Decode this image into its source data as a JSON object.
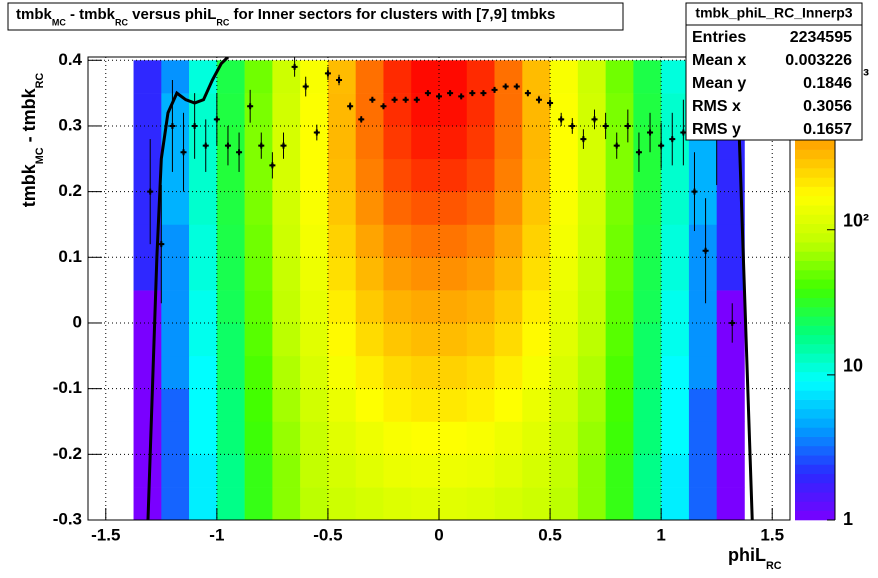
{
  "chart_data": {
    "type": "heatmap",
    "title_parts": [
      "tmbk",
      "MC",
      " - tmbk",
      "RC",
      " versus phiL",
      "RC",
      " for Inner sectors for clusters with [7,9] tmbks"
    ],
    "xlabel_parts": [
      "phiL",
      "RC"
    ],
    "ylabel_parts": [
      "tmbk",
      "MC",
      " - tmbk",
      "RC"
    ],
    "xlim": [
      -1.58,
      1.58
    ],
    "ylim": [
      -0.3,
      0.405
    ],
    "xticks": [
      -1.5,
      -1,
      -0.5,
      0,
      0.5,
      1,
      1.5
    ],
    "yticks": [
      -0.3,
      -0.2,
      -0.1,
      0,
      0.1,
      0.2,
      0.3,
      0.4
    ],
    "grid": true,
    "log_z": true,
    "zlim": [
      1,
      1550
    ],
    "zticks": [
      1,
      10,
      {
        "value": 100,
        "label": "10²"
      },
      {
        "value": 1000,
        "label": "10³"
      }
    ],
    "palette": [
      "#7a00ff",
      "#2a2aff",
      "#00a0ff",
      "#00ffff",
      "#00ff80",
      "#40ff00",
      "#c0ff00",
      "#ffff00",
      "#ffb000",
      "#ff6000",
      "#ff0000"
    ],
    "xbins": [
      -1.5,
      -1.375,
      -1.25,
      -1.125,
      -1,
      -0.875,
      -0.75,
      -0.625,
      -0.5,
      -0.375,
      -0.25,
      -0.125,
      0,
      0.125,
      0.25,
      0.375,
      0.5,
      0.625,
      0.75,
      0.875,
      1,
      1.125,
      1.25,
      1.375,
      1.5
    ],
    "ybins": [
      -0.3,
      -0.25,
      -0.2,
      -0.15,
      -0.1,
      -0.05,
      0,
      0.05,
      0.1,
      0.15,
      0.2,
      0.25,
      0.3,
      0.35,
      0.4
    ],
    "z": [
      [
        0,
        1,
        3,
        8,
        18,
        35,
        60,
        80,
        95,
        105,
        115,
        120,
        120,
        115,
        105,
        95,
        80,
        60,
        35,
        18,
        8,
        3,
        1,
        0
      ],
      [
        0,
        1,
        3,
        8,
        18,
        35,
        60,
        85,
        105,
        120,
        135,
        140,
        140,
        135,
        120,
        105,
        85,
        60,
        35,
        18,
        8,
        3,
        1,
        0
      ],
      [
        0,
        1,
        3,
        9,
        20,
        38,
        65,
        90,
        120,
        140,
        160,
        170,
        170,
        160,
        140,
        120,
        90,
        65,
        38,
        20,
        9,
        3,
        1,
        0
      ],
      [
        0,
        1,
        3,
        9,
        20,
        40,
        70,
        100,
        135,
        170,
        195,
        210,
        210,
        195,
        170,
        135,
        100,
        70,
        40,
        20,
        9,
        3,
        1,
        0
      ],
      [
        0,
        1,
        4,
        9,
        22,
        42,
        75,
        110,
        155,
        200,
        240,
        260,
        260,
        240,
        200,
        155,
        110,
        75,
        42,
        22,
        9,
        4,
        1,
        0
      ],
      [
        0,
        1,
        4,
        10,
        22,
        45,
        80,
        120,
        180,
        240,
        290,
        320,
        320,
        290,
        240,
        180,
        120,
        80,
        45,
        22,
        10,
        4,
        1,
        0
      ],
      [
        0,
        1,
        4,
        10,
        24,
        47,
        85,
        130,
        200,
        280,
        350,
        380,
        380,
        350,
        280,
        200,
        130,
        85,
        47,
        24,
        10,
        4,
        1,
        0
      ],
      [
        0,
        2,
        4,
        11,
        25,
        50,
        90,
        140,
        230,
        330,
        430,
        480,
        480,
        430,
        330,
        230,
        140,
        90,
        50,
        25,
        11,
        4,
        2,
        0
      ],
      [
        0,
        2,
        4,
        11,
        26,
        52,
        95,
        150,
        260,
        400,
        540,
        620,
        620,
        540,
        400,
        260,
        150,
        95,
        52,
        26,
        11,
        4,
        2,
        0
      ],
      [
        0,
        2,
        5,
        12,
        27,
        55,
        100,
        160,
        290,
        480,
        700,
        800,
        800,
        700,
        480,
        290,
        160,
        100,
        55,
        27,
        12,
        5,
        2,
        0
      ],
      [
        0,
        2,
        5,
        12,
        28,
        57,
        105,
        170,
        320,
        560,
        880,
        1050,
        1050,
        880,
        560,
        320,
        170,
        105,
        57,
        28,
        12,
        5,
        2,
        0
      ],
      [
        0,
        2,
        5,
        12,
        28,
        57,
        105,
        170,
        330,
        620,
        1000,
        1250,
        1250,
        1000,
        620,
        330,
        170,
        105,
        57,
        28,
        12,
        5,
        2,
        0
      ],
      [
        0,
        2,
        5,
        12,
        27,
        55,
        100,
        165,
        330,
        650,
        1100,
        1400,
        1400,
        1100,
        650,
        330,
        165,
        100,
        55,
        27,
        12,
        5,
        2,
        0
      ],
      [
        0,
        2,
        4,
        11,
        26,
        52,
        95,
        160,
        320,
        640,
        1120,
        1450,
        1450,
        1120,
        640,
        320,
        160,
        95,
        52,
        26,
        11,
        4,
        2,
        0
      ]
    ],
    "profile": {
      "color": "#000000",
      "x": [
        -1.3,
        -1.25,
        -1.2,
        -1.15,
        -1.1,
        -1.05,
        -1.0,
        -0.95,
        -0.9,
        -0.85,
        -0.8,
        -0.75,
        -0.7,
        -0.65,
        -0.6,
        -0.55,
        -0.5,
        -0.45,
        -0.4,
        -0.35,
        -0.3,
        -0.25,
        -0.2,
        -0.15,
        -0.1,
        -0.05,
        0,
        0.05,
        0.1,
        0.15,
        0.2,
        0.25,
        0.3,
        0.35,
        0.4,
        0.45,
        0.5,
        0.55,
        0.6,
        0.65,
        0.7,
        0.75,
        0.8,
        0.85,
        0.9,
        0.95,
        1.0,
        1.05,
        1.1,
        1.15,
        1.2,
        1.25,
        1.32
      ],
      "y": [
        0.2,
        0.12,
        0.3,
        0.26,
        0.3,
        0.27,
        0.31,
        0.27,
        0.26,
        0.33,
        0.27,
        0.24,
        0.27,
        0.39,
        0.36,
        0.29,
        0.38,
        0.37,
        0.33,
        0.31,
        0.34,
        0.33,
        0.34,
        0.34,
        0.34,
        0.35,
        0.345,
        0.35,
        0.345,
        0.35,
        0.35,
        0.355,
        0.36,
        0.36,
        0.35,
        0.34,
        0.335,
        0.31,
        0.3,
        0.28,
        0.31,
        0.3,
        0.27,
        0.3,
        0.26,
        0.29,
        0.27,
        0.28,
        0.29,
        0.2,
        0.11,
        0.3,
        0
      ],
      "err": [
        0.08,
        0.09,
        0.07,
        0.06,
        0.05,
        0.04,
        0.04,
        0.03,
        0.03,
        0.025,
        0.02,
        0.02,
        0.02,
        0.015,
        0.015,
        0.012,
        0.01,
        0.008,
        0.006,
        0.005,
        0.004,
        0.004,
        0.003,
        0.003,
        0.003,
        0.003,
        0.003,
        0.003,
        0.003,
        0.003,
        0.003,
        0.003,
        0.004,
        0.004,
        0.005,
        0.006,
        0.008,
        0.01,
        0.012,
        0.015,
        0.015,
        0.02,
        0.02,
        0.025,
        0.03,
        0.03,
        0.035,
        0.04,
        0.05,
        0.06,
        0.08,
        0.09,
        0.03
      ]
    },
    "fit": {
      "color": "#000000",
      "x": [
        -1.31,
        -1.29,
        -1.27,
        -1.25,
        -1.22,
        -1.18,
        -1.14,
        -1.1,
        -1.06,
        -1.02,
        -0.98,
        -0.95,
        0,
        1.33,
        1.35,
        1.37,
        1.39,
        1.41
      ],
      "y": [
        -0.3,
        -0.1,
        0.1,
        0.25,
        0.32,
        0.35,
        0.34,
        0.335,
        0.34,
        0.37,
        0.395,
        0.405,
        null,
        0.405,
        0.3,
        0.1,
        -0.1,
        -0.3
      ]
    }
  },
  "stats": {
    "title": "tmbk_phiL_RC_Innerp3",
    "rows": [
      [
        "Entries",
        "2234595"
      ],
      [
        "Mean x",
        "0.003226"
      ],
      [
        "Mean y",
        "0.1846"
      ],
      [
        "RMS x",
        "0.3056"
      ],
      [
        "RMS y",
        "0.1657"
      ]
    ]
  }
}
